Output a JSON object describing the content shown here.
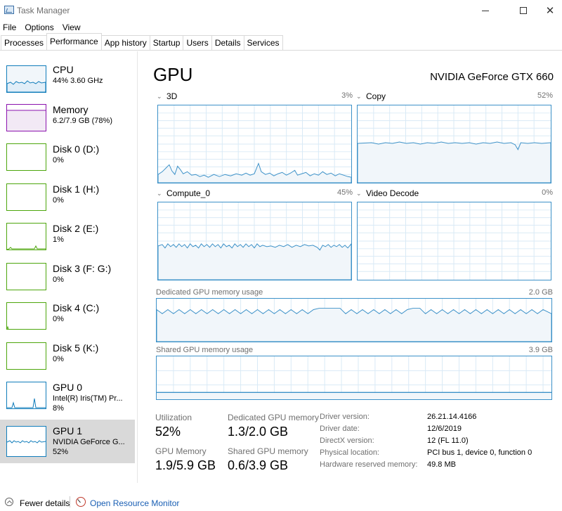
{
  "window": {
    "title": "Task Manager"
  },
  "menu": [
    "File",
    "Options",
    "View"
  ],
  "tabs": [
    "Processes",
    "Performance",
    "App history",
    "Startup",
    "Users",
    "Details",
    "Services"
  ],
  "sidebar": [
    {
      "name": "CPU",
      "sub1": "44% 3.60 GHz",
      "sub2": ""
    },
    {
      "name": "Memory",
      "sub1": "6.2/7.9 GB (78%)",
      "sub2": ""
    },
    {
      "name": "Disk 0 (D:)",
      "sub1": "0%",
      "sub2": ""
    },
    {
      "name": "Disk 1 (H:)",
      "sub1": "0%",
      "sub2": ""
    },
    {
      "name": "Disk 2 (E:)",
      "sub1": "1%",
      "sub2": ""
    },
    {
      "name": "Disk 3 (F: G:)",
      "sub1": "0%",
      "sub2": ""
    },
    {
      "name": "Disk 4 (C:)",
      "sub1": "0%",
      "sub2": ""
    },
    {
      "name": "Disk 5 (K:)",
      "sub1": "0%",
      "sub2": ""
    },
    {
      "name": "GPU 0",
      "sub1": "Intel(R) Iris(TM) Pr...",
      "sub2": "8%"
    },
    {
      "name": "GPU 1",
      "sub1": "NVIDIA GeForce G...",
      "sub2": "52%"
    }
  ],
  "main": {
    "title": "GPU",
    "model": "NVIDIA GeForce GTX 660",
    "graphs": {
      "g3d": {
        "label": "3D",
        "pct": "3%"
      },
      "copy": {
        "label": "Copy",
        "pct": "52%"
      },
      "compute": {
        "label": "Compute_0",
        "pct": "45%"
      },
      "video": {
        "label": "Video Decode",
        "pct": "0%"
      }
    },
    "dedicated": {
      "label": "Dedicated GPU memory usage",
      "max": "2.0 GB"
    },
    "shared": {
      "label": "Shared GPU memory usage",
      "max": "3.9 GB"
    },
    "stats": {
      "utilization_label": "Utilization",
      "utilization": "52%",
      "dedicated_label": "Dedicated GPU memory",
      "dedicated": "1.3/2.0 GB",
      "gpu_memory_label": "GPU Memory",
      "gpu_memory": "1.9/5.9 GB",
      "shared_label": "Shared GPU memory",
      "shared": "0.6/3.9 GB"
    },
    "details": [
      {
        "label": "Driver version:",
        "value": "26.21.14.4166"
      },
      {
        "label": "Driver date:",
        "value": "12/6/2019"
      },
      {
        "label": "DirectX version:",
        "value": "12 (FL 11.0)"
      },
      {
        "label": "Physical location:",
        "value": "PCI bus 1, device 0, function 0"
      },
      {
        "label": "Hardware reserved memory:",
        "value": "49.8 MB"
      }
    ]
  },
  "footer": {
    "fewer": "Fewer details",
    "resmon": "Open Resource Monitor"
  },
  "colors": {
    "gpu_line": "#3c91c8",
    "gpu_fill": "#f1f6fa",
    "gpu_grid": "#d9eaf6",
    "cpu": "#117dbb",
    "memory": "#8b12ae",
    "disk": "#4da60c"
  }
}
